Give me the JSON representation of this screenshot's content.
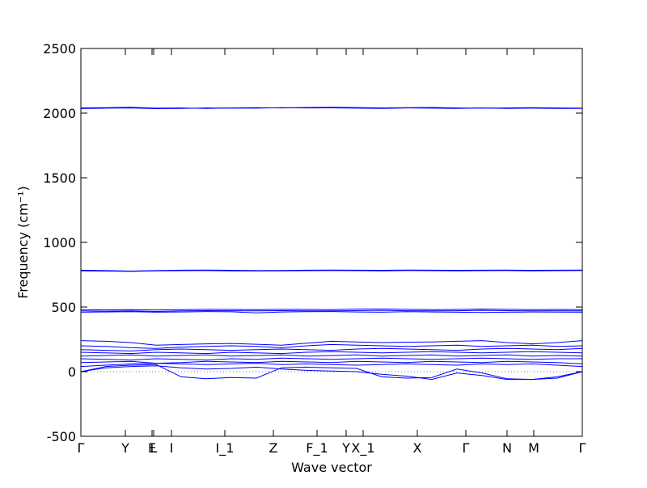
{
  "chart_data": {
    "type": "line",
    "xlabel": "Wave vector",
    "ylabel": "Frequency (cm⁻¹)",
    "xlim": [
      0,
      6.2
    ],
    "ylim": [
      -500,
      2500
    ],
    "yticks": [
      -500,
      0,
      500,
      1000,
      1500,
      2000,
      2500
    ],
    "xticks": [
      {
        "value": 0,
        "label": "Γ"
      },
      {
        "value": 0.55,
        "label": "Y"
      },
      {
        "value": 0.88,
        "label": "E"
      },
      {
        "value": 0.9,
        "label": "L"
      },
      {
        "value": 1.12,
        "label": "I"
      },
      {
        "value": 1.78,
        "label": "I_1"
      },
      {
        "value": 2.38,
        "label": "Z"
      },
      {
        "value": 2.92,
        "label": "F_1"
      },
      {
        "value": 3.28,
        "label": "Y"
      },
      {
        "value": 3.49,
        "label": "X_1"
      },
      {
        "value": 4.16,
        "label": "X"
      },
      {
        "value": 4.76,
        "label": "Γ"
      },
      {
        "value": 5.27,
        "label": "N"
      },
      {
        "value": 5.6,
        "label": "M"
      },
      {
        "value": 6.2,
        "label": "Γ"
      }
    ],
    "hline": 0,
    "x": [
      0,
      0.31,
      0.62,
      0.93,
      1.24,
      1.55,
      1.86,
      2.17,
      2.48,
      2.79,
      3.1,
      3.41,
      3.72,
      4.03,
      4.34,
      4.65,
      4.96,
      5.27,
      5.58,
      5.89,
      6.2
    ],
    "series": [
      {
        "color": "#0000ff",
        "values": [
          2040,
          2042,
          2045,
          2038,
          2040,
          2036,
          2040,
          2042,
          2040,
          2044,
          2045,
          2043,
          2040,
          2042,
          2044,
          2040,
          2038,
          2040,
          2042,
          2040,
          2038
        ]
      },
      {
        "color": "#0000ff",
        "values": [
          2035,
          2038,
          2040,
          2034,
          2036,
          2040,
          2038,
          2038,
          2042,
          2040,
          2041,
          2038,
          2036,
          2040,
          2038,
          2036,
          2040,
          2036,
          2038,
          2036,
          2036
        ]
      },
      {
        "color": "#0000ff",
        "values": [
          785,
          782,
          778,
          782,
          785,
          786,
          784,
          782,
          783,
          785,
          786,
          785,
          784,
          786,
          785,
          784,
          785,
          786,
          784,
          785,
          786
        ]
      },
      {
        "color": "#0000ff",
        "values": [
          780,
          778,
          776,
          780,
          781,
          782,
          780,
          779,
          780,
          781,
          782,
          781,
          780,
          782,
          781,
          780,
          781,
          782,
          780,
          781,
          782
        ]
      },
      {
        "color": "#0000ff",
        "values": [
          480,
          478,
          480,
          477,
          480,
          482,
          481,
          480,
          482,
          481,
          480,
          484,
          485,
          482,
          480,
          481,
          484,
          482,
          480,
          481,
          480
        ]
      },
      {
        "color": "#0000ff",
        "values": [
          470,
          468,
          470,
          466,
          470,
          472,
          471,
          470,
          472,
          470,
          470,
          472,
          474,
          471,
          470,
          471,
          474,
          472,
          470,
          471,
          470
        ]
      },
      {
        "color": "#0000ff",
        "values": [
          460,
          462,
          464,
          460,
          462,
          465,
          463,
          455,
          462,
          464,
          465,
          462,
          460,
          464,
          462,
          460,
          458,
          460,
          462,
          461,
          460
        ]
      },
      {
        "color": "#0000ff",
        "values": [
          240,
          235,
          225,
          205,
          210,
          215,
          218,
          212,
          205,
          220,
          235,
          230,
          225,
          228,
          230,
          235,
          240,
          225,
          215,
          225,
          240
        ]
      },
      {
        "color": "#0000ff",
        "values": [
          200,
          195,
          185,
          180,
          190,
          195,
          200,
          195,
          185,
          200,
          210,
          205,
          200,
          195,
          200,
          205,
          195,
          200,
          205,
          195,
          200
        ]
      },
      {
        "color": "#0000ff",
        "values": [
          170,
          165,
          160,
          170,
          175,
          170,
          165,
          170,
          175,
          170,
          165,
          175,
          180,
          175,
          170,
          165,
          175,
          180,
          175,
          170,
          180
        ]
      },
      {
        "color": "#0000ff",
        "values": [
          150,
          145,
          140,
          150,
          145,
          140,
          150,
          145,
          140,
          150,
          155,
          150,
          145,
          150,
          155,
          150,
          145,
          150,
          155,
          150,
          145
        ]
      },
      {
        "color": "#0000ff",
        "values": [
          120,
          125,
          130,
          120,
          125,
          130,
          120,
          125,
          130,
          120,
          125,
          130,
          120,
          125,
          130,
          120,
          125,
          130,
          120,
          125,
          120
        ]
      },
      {
        "color": "#0000ff",
        "values": [
          100,
          95,
          90,
          100,
          95,
          90,
          100,
          95,
          105,
          100,
          95,
          100,
          105,
          100,
          95,
          100,
          105,
          100,
          95,
          100,
          100
        ]
      },
      {
        "color": "#0000ff",
        "values": [
          70,
          75,
          80,
          65,
          70,
          80,
          75,
          70,
          80,
          75,
          70,
          80,
          75,
          70,
          80,
          75,
          70,
          80,
          75,
          70,
          60
        ]
      },
      {
        "color": "#0000ff",
        "values": [
          40,
          50,
          60,
          65,
          60,
          55,
          60,
          65,
          55,
          60,
          55,
          50,
          55,
          60,
          55,
          50,
          60,
          55,
          60,
          50,
          40
        ]
      },
      {
        "color": "#0000ff",
        "values": [
          0,
          40,
          50,
          55,
          -40,
          -55,
          -45,
          -50,
          30,
          35,
          30,
          25,
          -40,
          -50,
          -45,
          20,
          -10,
          -55,
          -60,
          -50,
          0
        ]
      },
      {
        "color": "#0000ff",
        "values": [
          0,
          30,
          40,
          45,
          30,
          20,
          25,
          35,
          20,
          10,
          5,
          0,
          -20,
          -35,
          -60,
          -10,
          -30,
          -60,
          -60,
          -40,
          0
        ]
      }
    ]
  }
}
